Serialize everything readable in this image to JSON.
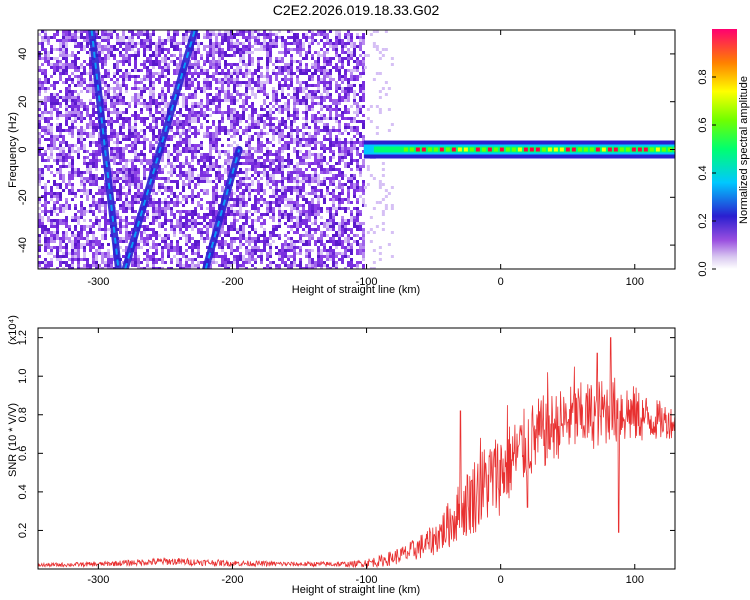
{
  "title": "C2E2.2026.019.18.33.G02",
  "colors": {
    "snr_line": "#e83030",
    "noise": "#6a22d8",
    "track": "#2a1fd0"
  },
  "colorbar": {
    "label": "Normalized spectral amplitude",
    "range": [
      0.0,
      1.0
    ],
    "ticks": [
      "0.0",
      "0.2",
      "0.4",
      "0.6",
      "0.8"
    ],
    "tick_values": [
      0.0,
      0.2,
      0.4,
      0.6,
      0.8
    ]
  },
  "chart_data": [
    {
      "type": "heatmap",
      "name": "spectrogram",
      "xlabel": "Height of straight line (km)",
      "ylabel": "Frequency (Hz)",
      "xlim": [
        -345,
        130
      ],
      "ylim": [
        -50,
        50
      ],
      "xticks": [
        -300,
        -200,
        -100,
        0,
        100
      ],
      "xtick_labels": [
        "-300",
        "-200",
        "-100",
        "0",
        "100"
      ],
      "yticks": [
        -40,
        -20,
        0,
        20,
        40
      ],
      "ytick_labels": [
        "-40",
        "-20",
        "0",
        "20",
        "40"
      ],
      "noise_region_end_x": -102,
      "tracks": [
        {
          "name": "track-1",
          "points": [
            [
              -305,
              50
            ],
            [
              -285,
              -50
            ]
          ]
        },
        {
          "name": "track-2",
          "points": [
            [
              -280,
              -50
            ],
            [
              -228,
              50
            ]
          ]
        },
        {
          "name": "track-3",
          "points": [
            [
              -220,
              -50
            ],
            [
              -195,
              0
            ]
          ]
        }
      ],
      "signal_band": {
        "x_start": -102,
        "x_end": 130,
        "frequency": 0,
        "peak_amplitude": 0.95
      }
    },
    {
      "type": "line",
      "name": "snr",
      "xlabel": "Height of straight line (km)",
      "ylabel": "SNR (10 * V/V)",
      "scale_note": "(x10⁴)",
      "xlim": [
        -345,
        130
      ],
      "ylim": [
        0,
        1.25
      ],
      "xticks": [
        -300,
        -200,
        -100,
        0,
        100
      ],
      "xtick_labels": [
        "-300",
        "-200",
        "-100",
        "0",
        "100"
      ],
      "yticks": [
        0.2,
        0.4,
        0.6,
        0.8,
        1.0,
        1.2
      ],
      "ytick_labels": [
        "0.2",
        "0.4",
        "0.6",
        "0.8",
        "1.0",
        "1.2"
      ],
      "x": [
        -345,
        -300,
        -250,
        -200,
        -150,
        -110,
        -90,
        -70,
        -50,
        -40,
        -30,
        -20,
        -10,
        0,
        10,
        20,
        30,
        40,
        50,
        60,
        70,
        80,
        90,
        100,
        110,
        120,
        130
      ],
      "values": [
        0.02,
        0.025,
        0.04,
        0.03,
        0.025,
        0.025,
        0.04,
        0.08,
        0.15,
        0.22,
        0.3,
        0.38,
        0.45,
        0.5,
        0.58,
        0.65,
        0.7,
        0.74,
        0.77,
        0.79,
        0.8,
        0.82,
        0.82,
        0.8,
        0.78,
        0.77,
        0.76
      ],
      "noise_amplitude": [
        0.01,
        0.012,
        0.02,
        0.015,
        0.012,
        0.015,
        0.03,
        0.05,
        0.08,
        0.12,
        0.16,
        0.2,
        0.22,
        0.22,
        0.2,
        0.2,
        0.2,
        0.18,
        0.18,
        0.18,
        0.18,
        0.18,
        0.18,
        0.15,
        0.12,
        0.1,
        0.08
      ],
      "spikes": [
        [
          -30,
          0.82
        ],
        [
          -15,
          0.68
        ],
        [
          5,
          0.85
        ],
        [
          35,
          1.02
        ],
        [
          55,
          1.05
        ],
        [
          72,
          1.12
        ],
        [
          82,
          1.2
        ],
        [
          88,
          0.19
        ],
        [
          20,
          0.32
        ]
      ]
    }
  ]
}
